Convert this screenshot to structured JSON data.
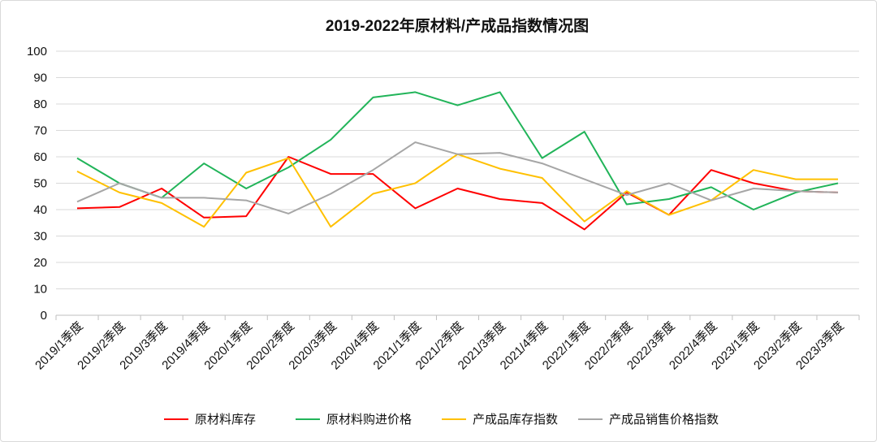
{
  "chart_data": {
    "type": "line",
    "title": "2019-2022年原材料/产成品指数情况图",
    "xlabel": "",
    "ylabel": "",
    "ylim": [
      0,
      100
    ],
    "yticks": [
      0,
      10,
      20,
      30,
      40,
      50,
      60,
      70,
      80,
      90,
      100
    ],
    "grid": true,
    "legend_position": "bottom",
    "categories": [
      "2019/1季度",
      "2019/2季度",
      "2019/3季度",
      "2019/4季度",
      "2020/1季度",
      "2020/2季度",
      "2020/3季度",
      "2020/4季度",
      "2021/1季度",
      "2021/2季度",
      "2021/3季度",
      "2021/4季度",
      "2022/1季度",
      "2022/2季度",
      "2022/3季度",
      "2022/4季度",
      "2023/1季度",
      "2023/2季度",
      "2023/3季度"
    ],
    "series": [
      {
        "name": "原材料库存",
        "color": "#ff0000",
        "values": [
          40.5,
          41.0,
          48.0,
          37.0,
          37.5,
          60.0,
          53.5,
          53.5,
          40.5,
          48.0,
          44.0,
          42.5,
          32.5,
          46.5,
          38.0,
          55.0,
          50.0,
          47.0,
          46.5
        ]
      },
      {
        "name": "原材料购进价格",
        "color": "#21b459",
        "values": [
          59.5,
          50.0,
          44.5,
          57.5,
          48.0,
          56.0,
          66.5,
          82.5,
          84.5,
          79.5,
          84.5,
          59.5,
          69.5,
          42.0,
          44.0,
          48.5,
          40.0,
          46.5,
          50.0
        ]
      },
      {
        "name": "产成品库存指数",
        "color": "#ffc000",
        "values": [
          54.5,
          46.5,
          42.5,
          33.5,
          54.0,
          59.5,
          33.5,
          46.0,
          50.0,
          61.0,
          55.5,
          52.0,
          35.5,
          47.0,
          38.0,
          43.5,
          55.0,
          51.5,
          51.5
        ]
      },
      {
        "name": "产成品销售价格指数",
        "color": "#a6a6a6",
        "values": [
          43.0,
          50.0,
          44.5,
          44.5,
          43.5,
          38.5,
          46.0,
          55.0,
          65.5,
          61.0,
          61.5,
          57.5,
          51.5,
          45.5,
          50.0,
          43.5,
          48.0,
          47.0,
          46.5
        ]
      }
    ]
  }
}
